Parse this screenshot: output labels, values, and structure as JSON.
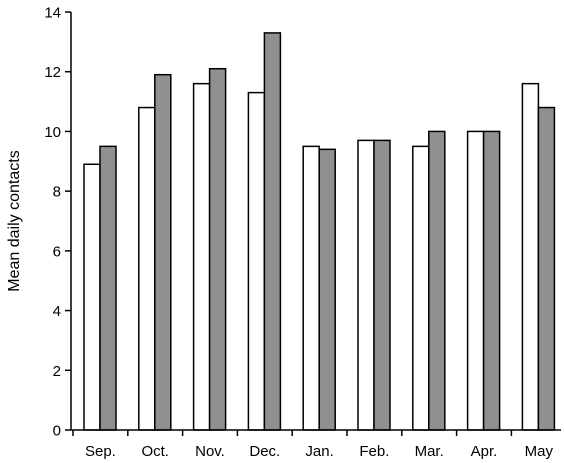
{
  "chart_data": {
    "type": "bar",
    "ylabel": "Mean daily contacts",
    "xlabel": "",
    "title": "",
    "ylim": [
      0,
      14
    ],
    "yticks": [
      0,
      2,
      4,
      6,
      8,
      10,
      12,
      14
    ],
    "categories": [
      "Sep.",
      "Oct.",
      "Nov.",
      "Dec.",
      "Jan.",
      "Feb.",
      "Mar.",
      "Apr.",
      "May"
    ],
    "series": [
      {
        "color": "#ffffff",
        "values": [
          8.9,
          10.8,
          11.6,
          11.3,
          9.5,
          9.7,
          9.5,
          10.0,
          11.6
        ]
      },
      {
        "color": "#909090",
        "values": [
          9.5,
          11.9,
          12.1,
          13.3,
          9.4,
          9.7,
          10.0,
          10.0,
          10.8
        ]
      }
    ],
    "grid": false,
    "legend": "none"
  }
}
